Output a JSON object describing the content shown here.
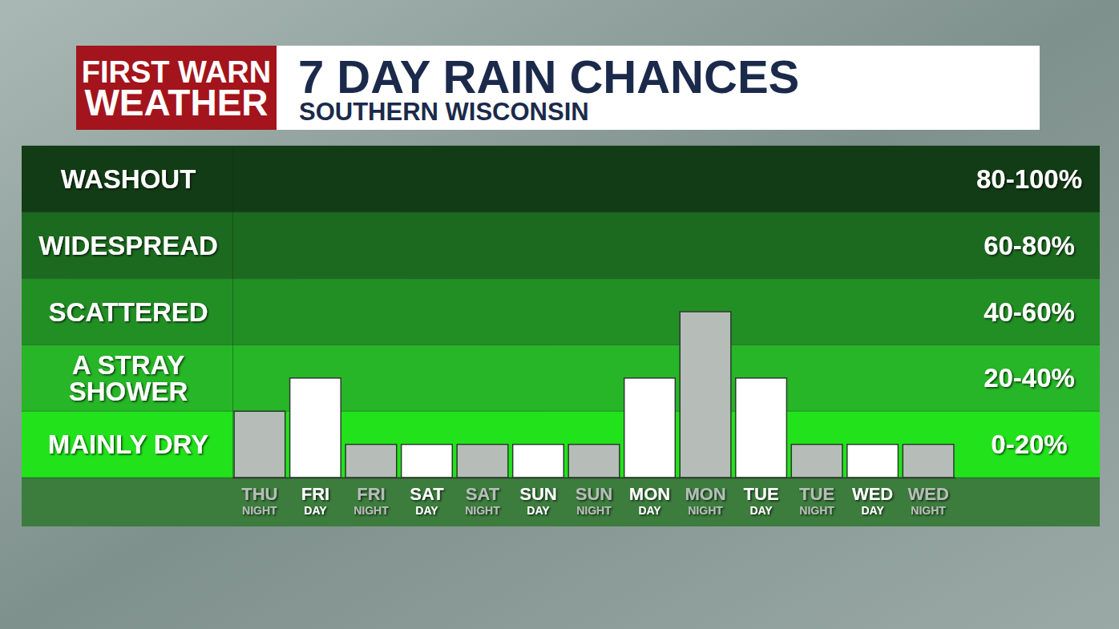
{
  "chart_data": {
    "type": "bar",
    "title": "7 DAY RAIN CHANCES",
    "subtitle": "SOUTHERN WISCONSIN",
    "logo_lines": [
      "FIRST WARN",
      "WEATHER"
    ],
    "categories": [
      "THU NIGHT",
      "FRI DAY",
      "FRI NIGHT",
      "SAT DAY",
      "SAT NIGHT",
      "SUN DAY",
      "SUN NIGHT",
      "MON DAY",
      "MON NIGHT",
      "TUE DAY",
      "TUE NIGHT",
      "WED DAY",
      "WED NIGHT"
    ],
    "values": [
      20,
      30,
      10,
      10,
      10,
      10,
      10,
      30,
      50,
      30,
      10,
      10,
      10
    ],
    "colors": [
      "#b6bdb8",
      "#ffffff",
      "#b6bdb8",
      "#ffffff",
      "#b6bdb8",
      "#ffffff",
      "#b6bdb8",
      "#ffffff",
      "#b6bdb8",
      "#ffffff",
      "#b6bdb8",
      "#ffffff",
      "#b6bdb8"
    ],
    "ylim": [
      0,
      100
    ],
    "yticks": [
      0,
      20,
      40,
      60,
      80,
      100
    ],
    "grid": true,
    "tick_labels": "x",
    "bands": [
      {
        "label": "MAINLY DRY",
        "range_label": "0-20%",
        "from": 0,
        "to": 20,
        "color": "#22e31b"
      },
      {
        "label": "A STRAY SHOWER",
        "range_label": "20-40%",
        "from": 20,
        "to": 40,
        "color": "#26b627"
      },
      {
        "label": "SCATTERED",
        "range_label": "40-60%",
        "from": 40,
        "to": 60,
        "color": "#228f25"
      },
      {
        "label": "WIDESPREAD",
        "range_label": "60-80%",
        "from": 60,
        "to": 80,
        "color": "#1c6a1f"
      },
      {
        "label": "WASHOUT",
        "range_label": "80-100%",
        "from": 80,
        "to": 100,
        "color": "#123c15"
      }
    ]
  }
}
